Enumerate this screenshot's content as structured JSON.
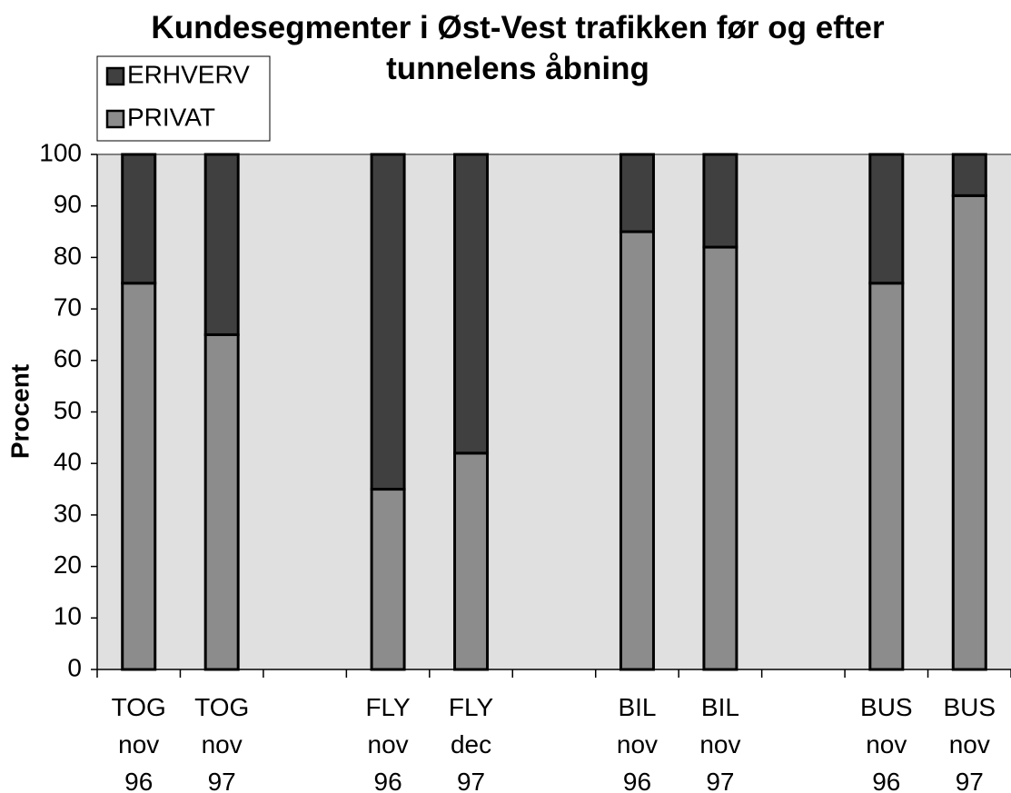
{
  "chart_data": {
    "type": "stacked_bar",
    "title": "Kundesegmenter i Øst-Vest trafikken før og efter\ntunnelens åbning",
    "y_label": "Procent",
    "categories": [
      "TOG\nnov\n96",
      "TOG\nnov\n97",
      null,
      "FLY\nnov\n96",
      "FLY\ndec\n97",
      null,
      "BIL\nnov\n96",
      "BIL\nnov\n97",
      null,
      "BUS\nnov\n96",
      "BUS\nnov\n97"
    ],
    "series": [
      {
        "name": "PRIVAT",
        "color": "#8c8c8c",
        "values": [
          75,
          65,
          null,
          35,
          42,
          null,
          85,
          82,
          null,
          75,
          92
        ]
      },
      {
        "name": "ERHVERV",
        "color": "#404040",
        "values": [
          25,
          35,
          null,
          65,
          58,
          null,
          15,
          18,
          null,
          25,
          8
        ]
      }
    ],
    "ylim": [
      0,
      100
    ],
    "yticks": [
      0,
      10,
      20,
      30,
      40,
      50,
      60,
      70,
      80,
      90,
      100
    ],
    "grid": false,
    "legend": "top-left"
  }
}
